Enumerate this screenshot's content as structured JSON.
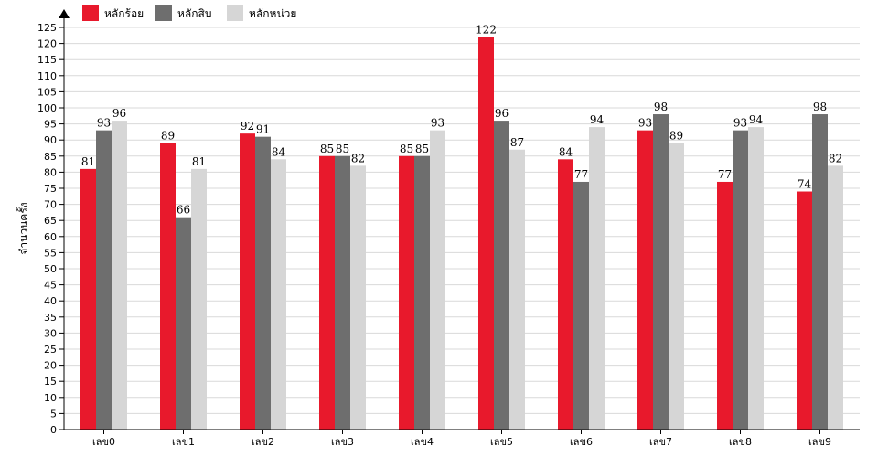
{
  "chart_data": {
    "type": "bar",
    "categories": [
      "เลข0",
      "เลข1",
      "เลข2",
      "เลข3",
      "เลข4",
      "เลข5",
      "เลข6",
      "เลข7",
      "เลข8",
      "เลข9"
    ],
    "series": [
      {
        "name": "หลักร้อย",
        "color": "#e8192c",
        "values": [
          81,
          89,
          92,
          85,
          85,
          122,
          84,
          93,
          77,
          74
        ]
      },
      {
        "name": "หลักสิบ",
        "color": "#6e6e6e",
        "values": [
          93,
          66,
          91,
          85,
          85,
          96,
          77,
          98,
          93,
          98
        ]
      },
      {
        "name": "หลักหน่วย",
        "color": "#d6d6d6",
        "values": [
          96,
          81,
          84,
          82,
          93,
          87,
          94,
          89,
          94,
          82
        ]
      }
    ],
    "ylabel": "จำนวนครั้ง",
    "xlabel": "",
    "ylim": [
      0,
      125
    ],
    "ytick_step": 5,
    "grid": true,
    "legend_position": "top-left",
    "value_labels": true
  }
}
